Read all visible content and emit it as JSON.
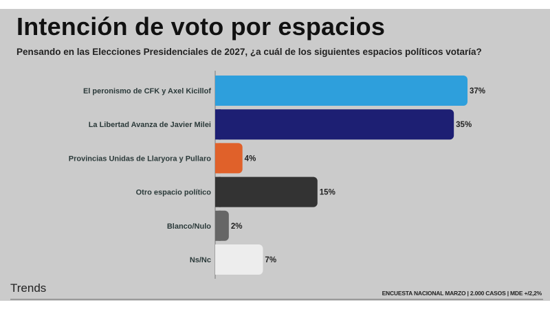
{
  "header": {
    "title": "Intención de voto por espacios",
    "subtitle": "Pensando en las Elecciones Presidenciales de 2027, ¿a cuál de los siguientes espacios políticos votaría?"
  },
  "footer": {
    "brand": "Trends",
    "note": "ENCUESTA NACIONAL MARZO | 2.000 CASOS | MDE +/2,2%"
  },
  "chart_data": {
    "type": "bar",
    "orientation": "horizontal",
    "title": "Intención de voto por espacios",
    "subtitle": "Pensando en las Elecciones Presidenciales de 2027, ¿a cuál de los siguientes espacios políticos votaría?",
    "xlabel": "",
    "ylabel": "",
    "grid": false,
    "legend": "none",
    "unit": "%",
    "xlim": [
      0,
      37
    ],
    "categories": [
      "El peronismo de CFK y Axel Kicillof",
      "La Libertad Avanza de Javier Milei",
      "Provincias Unidas de Llaryora y Pullaro",
      "Otro espacio político",
      "Blanco/Nulo",
      "Ns/Nc"
    ],
    "values": [
      37,
      35,
      4,
      15,
      2,
      7
    ],
    "value_labels": [
      "37%",
      "35%",
      "4%",
      "15%",
      "2%",
      "7%"
    ],
    "colors": [
      "#2e9fdc",
      "#1d1f73",
      "#e0612a",
      "#333333",
      "#666666",
      "#ededed"
    ]
  }
}
